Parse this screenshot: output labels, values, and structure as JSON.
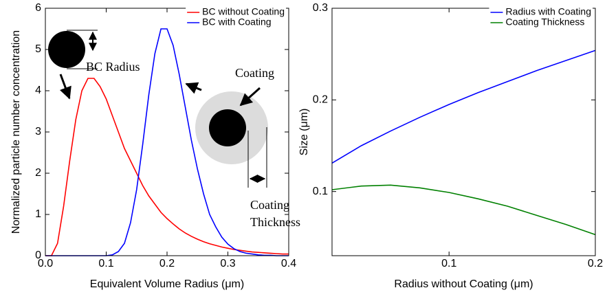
{
  "chart_data": [
    {
      "type": "line",
      "xlabel": "Equivalent Volume Radius (μm)",
      "ylabel": "Normalized particle number concentration",
      "x": [
        0,
        0.01,
        0.02,
        0.03,
        0.04,
        0.05,
        0.06,
        0.07,
        0.08,
        0.09,
        0.1,
        0.11,
        0.12,
        0.13,
        0.14,
        0.15,
        0.16,
        0.17,
        0.18,
        0.19,
        0.2,
        0.21,
        0.22,
        0.23,
        0.24,
        0.25,
        0.26,
        0.27,
        0.28,
        0.29,
        0.3,
        0.31,
        0.32,
        0.33,
        0.34,
        0.35,
        0.36,
        0.37,
        0.38,
        0.39,
        0.4
      ],
      "series": [
        {
          "name": "BC without Coating",
          "color": "#ff0000",
          "values": [
            0,
            0,
            0.3,
            1.2,
            2.3,
            3.3,
            4.0,
            4.3,
            4.3,
            4.1,
            3.8,
            3.4,
            3.0,
            2.6,
            2.3,
            2.0,
            1.7,
            1.45,
            1.25,
            1.05,
            0.9,
            0.77,
            0.65,
            0.55,
            0.47,
            0.4,
            0.34,
            0.29,
            0.25,
            0.21,
            0.18,
            0.15,
            0.13,
            0.11,
            0.09,
            0.08,
            0.07,
            0.06,
            0.05,
            0.04,
            0.04
          ]
        },
        {
          "name": "BC with Coating",
          "color": "#0000ff",
          "values": [
            0,
            0,
            0,
            0,
            0,
            0,
            0,
            0,
            0,
            0,
            0,
            0.02,
            0.1,
            0.3,
            0.8,
            1.6,
            2.7,
            3.9,
            4.9,
            5.5,
            5.5,
            5.1,
            4.4,
            3.6,
            2.8,
            2.1,
            1.5,
            1.0,
            0.7,
            0.45,
            0.28,
            0.17,
            0.1,
            0.06,
            0.04,
            0.02,
            0.01,
            0.01,
            0,
            0,
            0
          ]
        }
      ],
      "xlim": [
        0,
        0.4
      ],
      "ylim": [
        0,
        6
      ],
      "xticks": [
        {
          "value": 0,
          "label": "0.0"
        },
        0.1,
        0.2,
        0.3,
        0.4
      ],
      "yticks": [
        0,
        1,
        2,
        3,
        4,
        5,
        6
      ],
      "legend": "upper right",
      "annotations": [
        "BC Radius",
        "Coating",
        "Coating",
        "Thickness"
      ]
    },
    {
      "type": "line",
      "xlabel": "Radius without Coating (μm)",
      "ylabel": "Size (μm)",
      "x": [
        0.02,
        0.04,
        0.06,
        0.08,
        0.1,
        0.12,
        0.14,
        0.16,
        0.18,
        0.2
      ],
      "series": [
        {
          "name": "Radius with Coating",
          "color": "#0000ff",
          "values": [
            0.131,
            0.15,
            0.166,
            0.181,
            0.195,
            0.208,
            0.22,
            0.232,
            0.243,
            0.254
          ]
        },
        {
          "name": "Coating Thickness",
          "color": "#008000",
          "values": [
            0.102,
            0.106,
            0.107,
            0.104,
            0.099,
            0.092,
            0.084,
            0.074,
            0.064,
            0.053
          ]
        }
      ],
      "xlim": [
        0.02,
        0.2
      ],
      "ylim": [
        0.03,
        0.3
      ],
      "xticks": [
        0.1,
        0.2
      ],
      "yticks": [
        0.1,
        0.2,
        0.3
      ],
      "legend": "upper right"
    }
  ]
}
